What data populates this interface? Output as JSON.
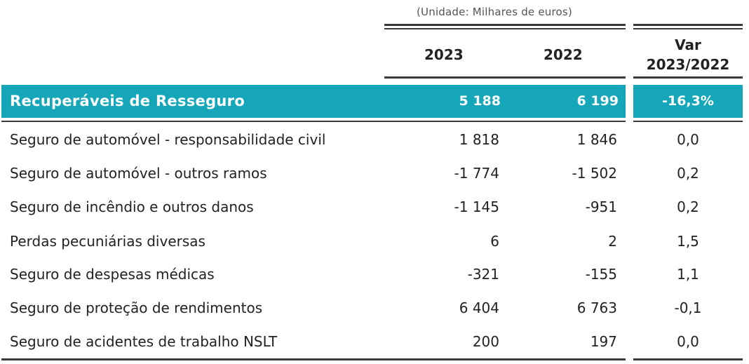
{
  "unit_note": "(Unidade: Milhares de euros)",
  "header": {
    "col_2023": "2023",
    "col_2022": "2022",
    "var_line1": "Var",
    "var_line2": "2023/2022"
  },
  "highlight": {
    "label": "Recuperáveis de Resseguro",
    "v2023": "5 188",
    "v2022": "6 199",
    "var": "-16,3%",
    "color": "#15a7b9"
  },
  "rows": [
    {
      "label": "Seguro de automóvel - responsabilidade civil",
      "v2023": "1 818",
      "v2022": "1 846",
      "var": "0,0"
    },
    {
      "label": "Seguro de automóvel - outros ramos",
      "v2023": "-1 774",
      "v2022": "-1 502",
      "var": "0,2"
    },
    {
      "label": "Seguro de incêndio e outros danos",
      "v2023": "-1 145",
      "v2022": "-951",
      "var": "0,2"
    },
    {
      "label": "Perdas pecuniárias diversas",
      "v2023": "6",
      "v2022": "2",
      "var": "1,5"
    },
    {
      "label": "Seguro de despesas médicas",
      "v2023": "-321",
      "v2022": "-155",
      "var": "1,1"
    },
    {
      "label": "Seguro de proteção de rendimentos",
      "v2023": "6 404",
      "v2022": "6 763",
      "var": "-0,1"
    },
    {
      "label": "Seguro de acidentes de trabalho NSLT",
      "v2023": "200",
      "v2022": "197",
      "var": "0,0"
    }
  ]
}
